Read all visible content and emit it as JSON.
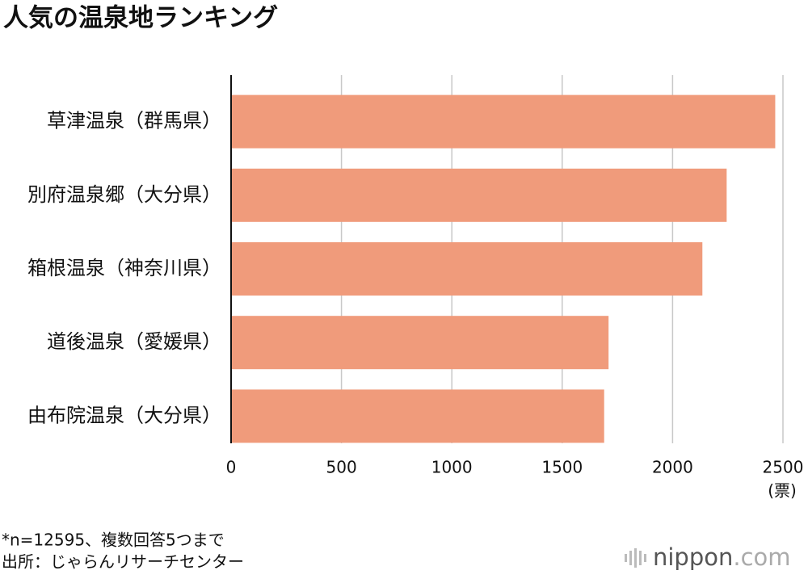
{
  "chart_data": {
    "type": "hbar",
    "title": "人気の温泉地ランキング",
    "categories": [
      "草津温泉（群馬県）",
      "別府温泉郷（大分県）",
      "箱根温泉（神奈川県）",
      "道後温泉（愛媛県）",
      "由布院温泉（大分県）"
    ],
    "values": [
      2465,
      2245,
      2135,
      1710,
      1690
    ],
    "color": "#f09b7b",
    "xlim": [
      0,
      2500
    ],
    "xticks": [
      0,
      500,
      1000,
      1500,
      2000,
      2500
    ],
    "x_unit": "(票)",
    "grid": true,
    "notes": [
      "*n=12595、複数回答5つまで",
      "出所：じゃらんリサーチセンター"
    ],
    "logo": {
      "name": "nippon",
      "suffix": ".com"
    }
  }
}
